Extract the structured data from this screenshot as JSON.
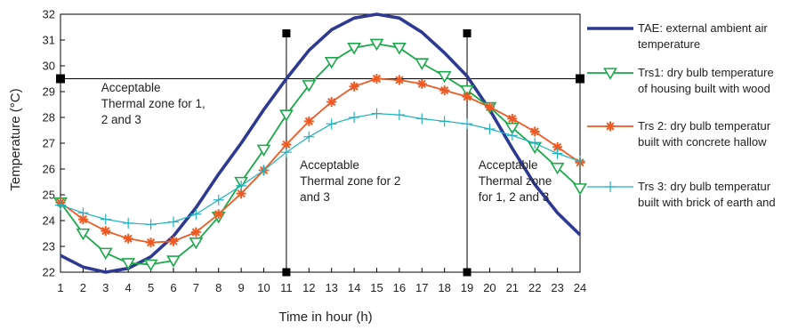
{
  "chart_data": {
    "type": "line",
    "xlabel": "Time in hour (h)",
    "ylabel": "Temperature (°C)",
    "x": [
      1,
      2,
      3,
      4,
      5,
      6,
      7,
      8,
      9,
      10,
      11,
      12,
      13,
      14,
      15,
      16,
      17,
      18,
      19,
      20,
      21,
      22,
      23,
      24
    ],
    "xlim": [
      1,
      24
    ],
    "ylim": [
      22,
      32
    ],
    "y_ticks": [
      22,
      23,
      24,
      25,
      26,
      27,
      28,
      29,
      30,
      31,
      32
    ],
    "grid": false,
    "legend_position": "right",
    "series": [
      {
        "name": "TAE: external ambient air temperature",
        "legend_lines": [
          "TAE: external ambient air",
          "temperature"
        ],
        "color": "#2e3a92",
        "marker": "none",
        "values": [
          22.65,
          22.2,
          22.0,
          22.15,
          22.6,
          23.4,
          24.5,
          25.8,
          27.0,
          28.3,
          29.5,
          30.6,
          31.4,
          31.85,
          32.0,
          31.85,
          31.3,
          30.5,
          29.6,
          28.3,
          26.8,
          25.4,
          24.3,
          23.45
        ]
      },
      {
        "name": "Trs1: dry bulb temperature of housing built with wood",
        "legend_lines": [
          "Trs1: dry bulb temperature",
          "of housing  built with wood"
        ],
        "color": "#1aa84a",
        "marker": "triangle-down",
        "values": [
          24.7,
          23.5,
          22.75,
          22.35,
          22.3,
          22.45,
          23.15,
          24.15,
          25.5,
          26.75,
          28.1,
          29.25,
          30.15,
          30.7,
          30.85,
          30.7,
          30.1,
          29.6,
          29.05,
          28.4,
          27.6,
          26.85,
          26.05,
          25.25
        ]
      },
      {
        "name": "Trs 2: dry bulb temperatur built with concrete hallow",
        "legend_lines": [
          "Trs 2: dry bulb temperatur",
          "built with concrete hallow"
        ],
        "color": "#ee5a24",
        "marker": "asterisk",
        "values": [
          24.7,
          24.05,
          23.6,
          23.3,
          23.15,
          23.2,
          23.55,
          24.25,
          25.05,
          25.95,
          26.95,
          27.85,
          28.6,
          29.2,
          29.5,
          29.45,
          29.3,
          29.05,
          28.8,
          28.4,
          27.95,
          27.45,
          26.85,
          26.25
        ]
      },
      {
        "name": "Trs 3: dry bulb temperatur built with brick of earth and",
        "legend_lines": [
          "Trs 3: dry bulb temperatur",
          "built with brick of earth and"
        ],
        "color": "#20b2c0",
        "marker": "plus",
        "values": [
          24.6,
          24.3,
          24.05,
          23.9,
          23.85,
          23.95,
          24.25,
          24.8,
          25.35,
          25.95,
          26.65,
          27.25,
          27.75,
          28.0,
          28.15,
          28.1,
          27.95,
          27.85,
          27.75,
          27.55,
          27.3,
          27.0,
          26.6,
          26.3
        ]
      }
    ],
    "reference_lines": {
      "horizontal_y": 29.5,
      "vertical_x": [
        11,
        19
      ]
    },
    "annotations": [
      {
        "x": 2.8,
        "y": 29.0,
        "lines": [
          "Acceptable",
          "Thermal zone for 1,",
          "2 and 3"
        ]
      },
      {
        "x": 11.6,
        "y": 26.0,
        "lines": [
          "Acceptable",
          "Thermal zone for  2",
          "and 3"
        ]
      },
      {
        "x": 19.5,
        "y": 26.0,
        "lines": [
          "Acceptable",
          "Thermal zone",
          "for 1, 2 and 3"
        ]
      }
    ]
  }
}
